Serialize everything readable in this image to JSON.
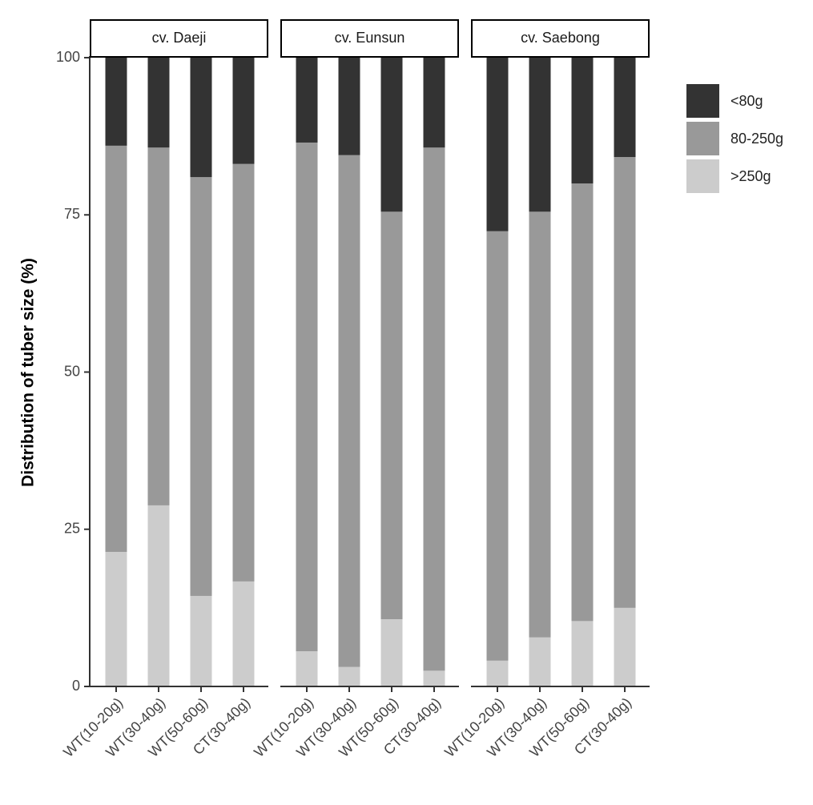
{
  "chart_data": {
    "type": "stacked-bar",
    "y_label": "Distribution of tuber size (%)",
    "ylim": [
      0,
      100
    ],
    "yticks": [
      0,
      25,
      50,
      75,
      100
    ],
    "series": [
      {
        "name": "<80g",
        "color": "#333333"
      },
      {
        "name": "80-250g",
        "color": "#999999"
      },
      {
        "name": ">250g",
        "color": "#cccccc"
      }
    ],
    "panels": [
      {
        "title": "cv. Daeji",
        "categories": [
          "WT(10-20g)",
          "WT(30-40g)",
          "WT(50-60g)",
          "CT(30-40g)"
        ],
        "series_values": [
          [
            14.0,
            14.3,
            19.0,
            16.9
          ],
          [
            64.6,
            56.9,
            66.6,
            66.4
          ],
          [
            21.4,
            28.8,
            14.4,
            16.7
          ]
        ]
      },
      {
        "title": "cv. Eunsun",
        "categories": [
          "WT(10-20g)",
          "WT(30-40g)",
          "WT(50-60g)",
          "CT(30-40g)"
        ],
        "series_values": [
          [
            13.5,
            15.5,
            24.5,
            14.3
          ],
          [
            80.9,
            81.4,
            64.8,
            83.2
          ],
          [
            5.6,
            3.1,
            10.7,
            2.5
          ]
        ]
      },
      {
        "title": "cv. Saebong",
        "categories": [
          "WT(10-20g)",
          "WT(30-40g)",
          "WT(50-60g)",
          "CT(30-40g)"
        ],
        "series_values": [
          [
            27.6,
            24.5,
            20.0,
            15.8
          ],
          [
            68.3,
            67.7,
            69.6,
            71.7
          ],
          [
            4.1,
            7.8,
            10.4,
            12.5
          ]
        ]
      }
    ]
  }
}
